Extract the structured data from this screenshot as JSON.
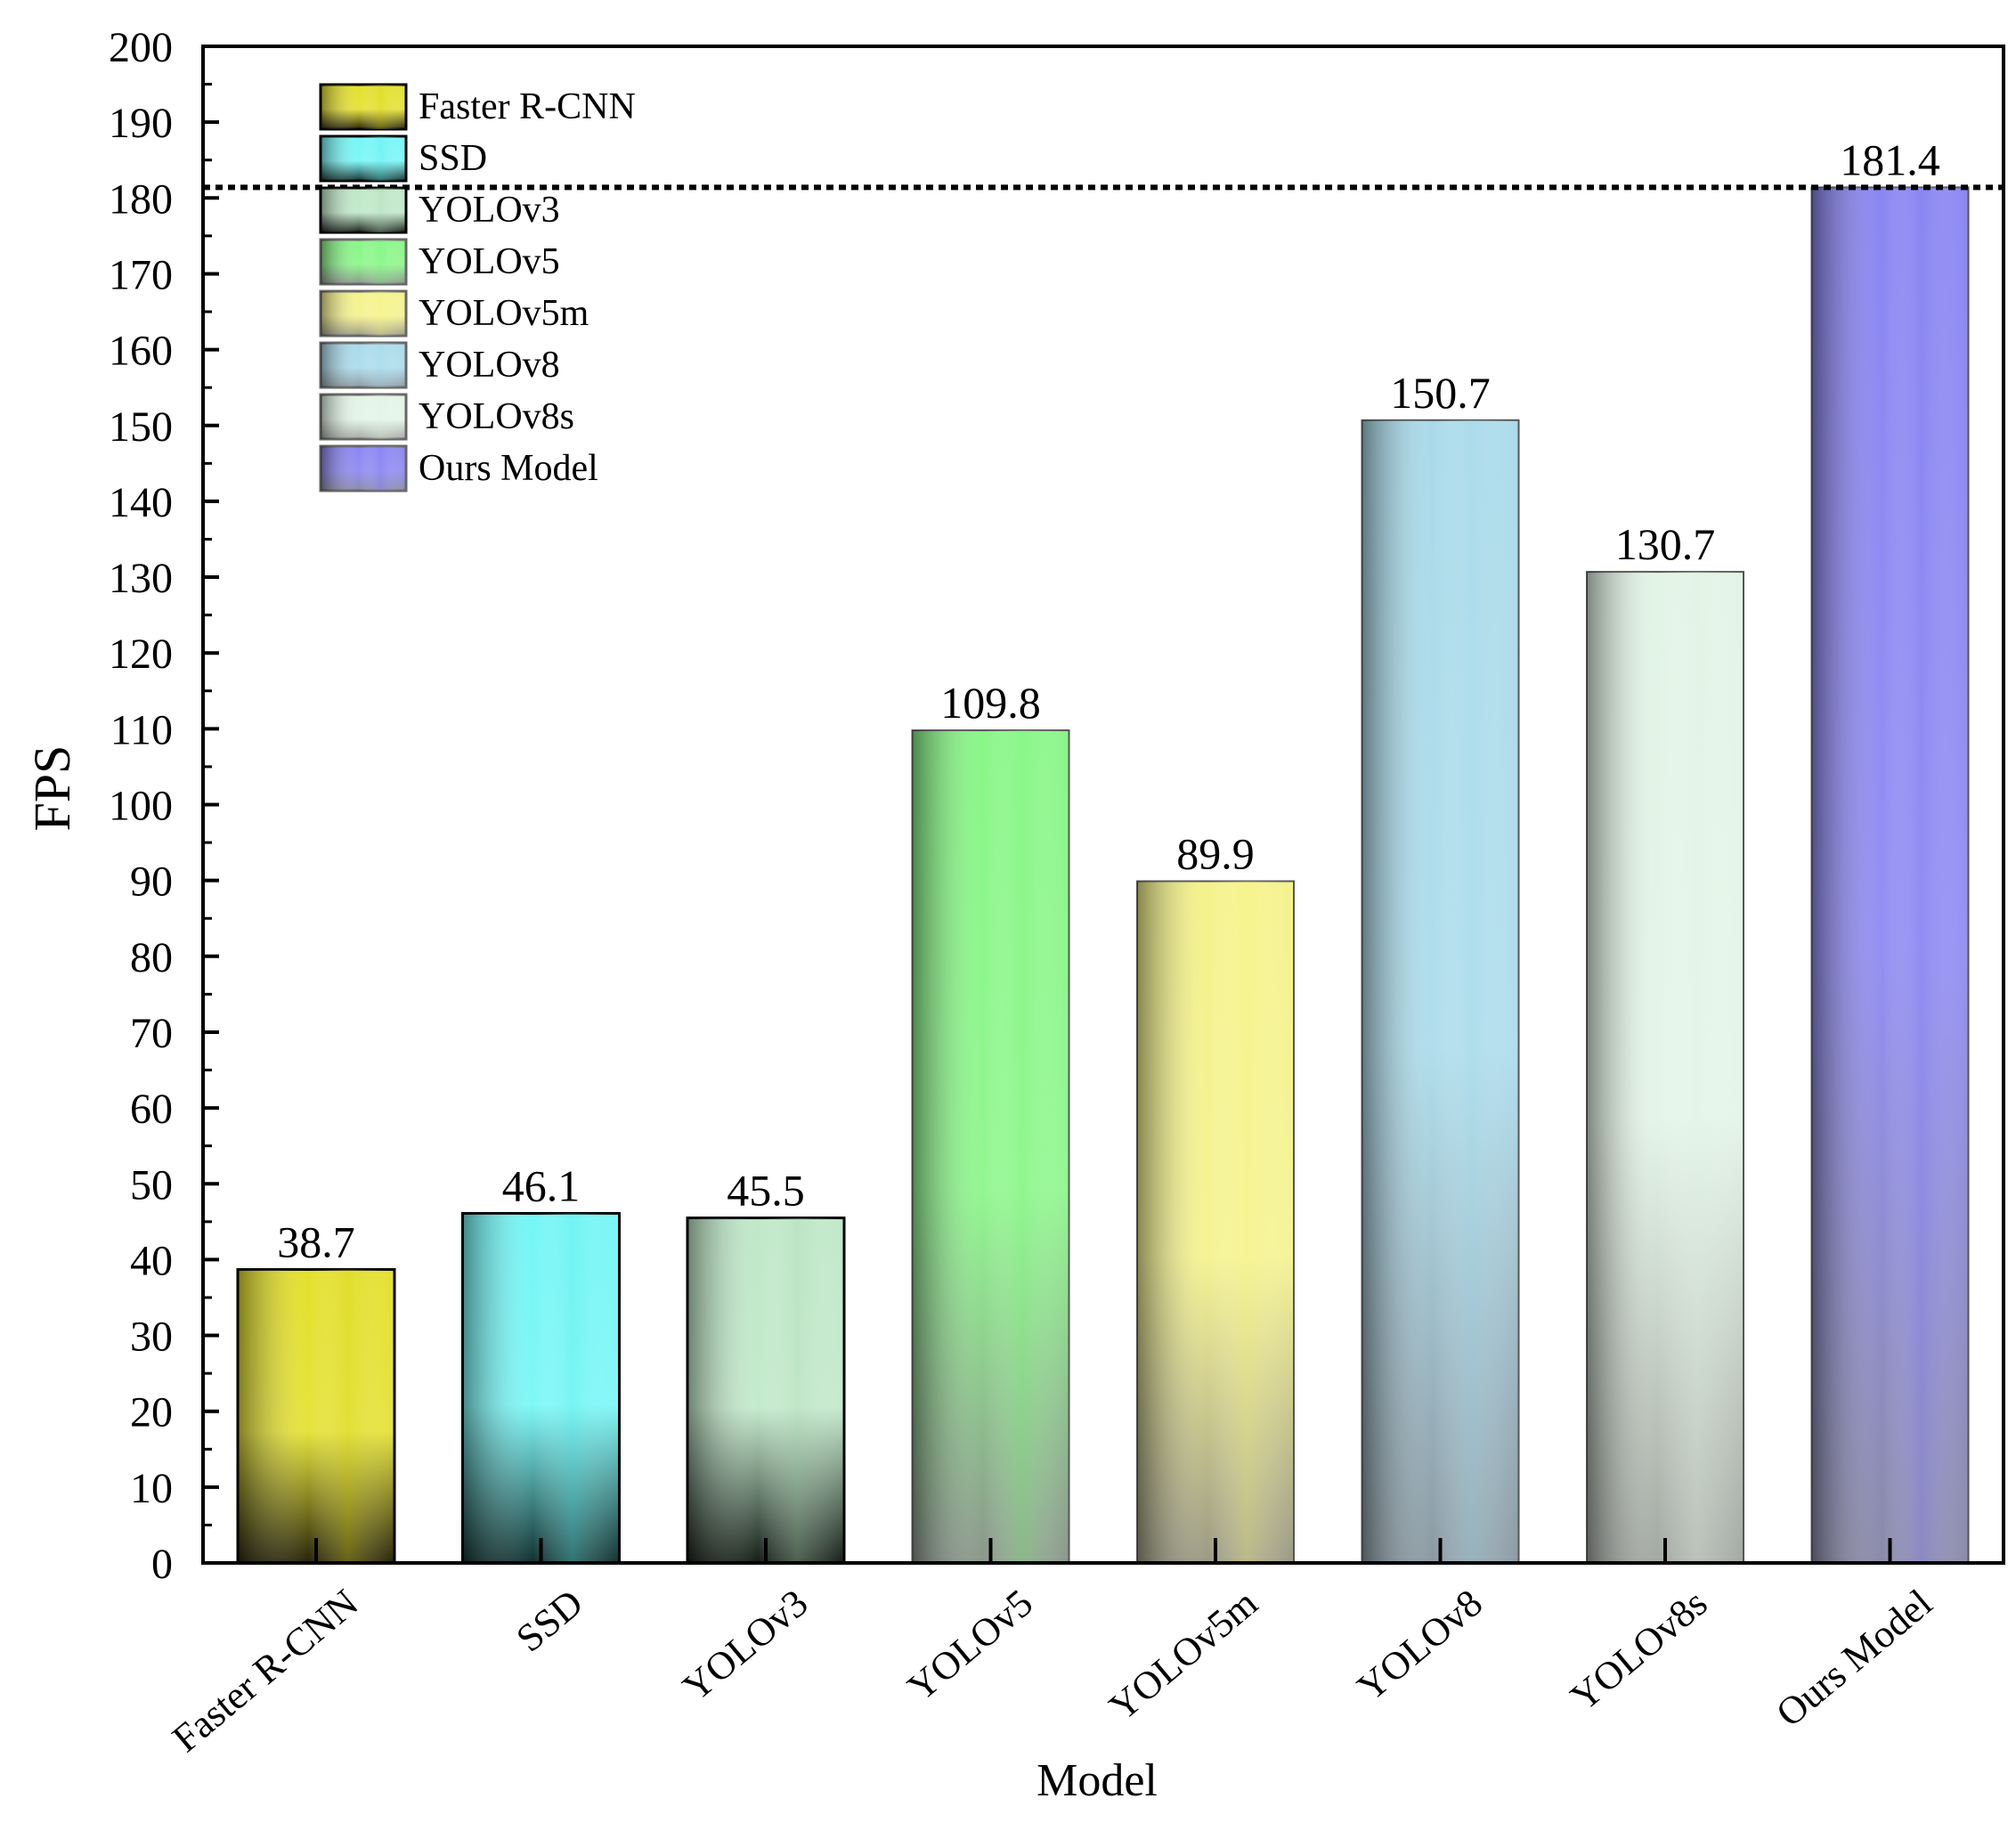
{
  "chart_data": {
    "type": "bar",
    "title": "",
    "xlabel": "Model",
    "ylabel": "FPS",
    "ylim": [
      0,
      200
    ],
    "y_ticks": [
      0,
      10,
      20,
      30,
      40,
      50,
      60,
      70,
      80,
      90,
      100,
      110,
      120,
      130,
      140,
      150,
      160,
      170,
      180,
      190,
      200
    ],
    "categories": [
      "Faster R-CNN",
      "SSD",
      "YOLOv3",
      "YOLOv5",
      "YOLOv5m",
      "YOLOv8",
      "YOLOv8s",
      "Ours Model"
    ],
    "values": [
      38.7,
      46.1,
      45.5,
      109.8,
      89.9,
      150.7,
      130.7,
      181.4
    ],
    "value_labels": [
      "38.7",
      "46.1",
      "45.5",
      "109.8",
      "89.9",
      "150.7",
      "130.7",
      "181.4"
    ],
    "colors": [
      {
        "top": "#e3e02a",
        "bottom": "#262208",
        "hi": "#dcd82c"
      },
      {
        "top": "#74f6f6",
        "bottom": "#10302f",
        "hi": "#6aeeee"
      },
      {
        "top": "#bfe8c8",
        "bottom": "#141d16",
        "hi": "#b6dcbc"
      },
      {
        "top": "#88f686",
        "bottom": "#8a968b",
        "hi": "#8cf58a"
      },
      {
        "top": "#f4f28a",
        "bottom": "#9b9983",
        "hi": "#f8f68e"
      },
      {
        "top": "#a9daea",
        "bottom": "#8b9aa3",
        "hi": "#aedfee"
      },
      {
        "top": "#e2f4e6",
        "bottom": "#a3a8a2",
        "hi": "#e4f5e8"
      },
      {
        "top": "#8985f2",
        "bottom": "#8a8aa8",
        "hi": "#8a86f4"
      }
    ],
    "reference_line": {
      "value": 181.4,
      "style": "dotted"
    },
    "legend": {
      "placement": "top-left",
      "entries": [
        "Faster R-CNN",
        "SSD",
        "YOLOv3",
        "YOLOv5",
        "YOLOv5m",
        "YOLOv8",
        "YOLOv8s",
        "Ours Model"
      ]
    },
    "grid": false
  }
}
